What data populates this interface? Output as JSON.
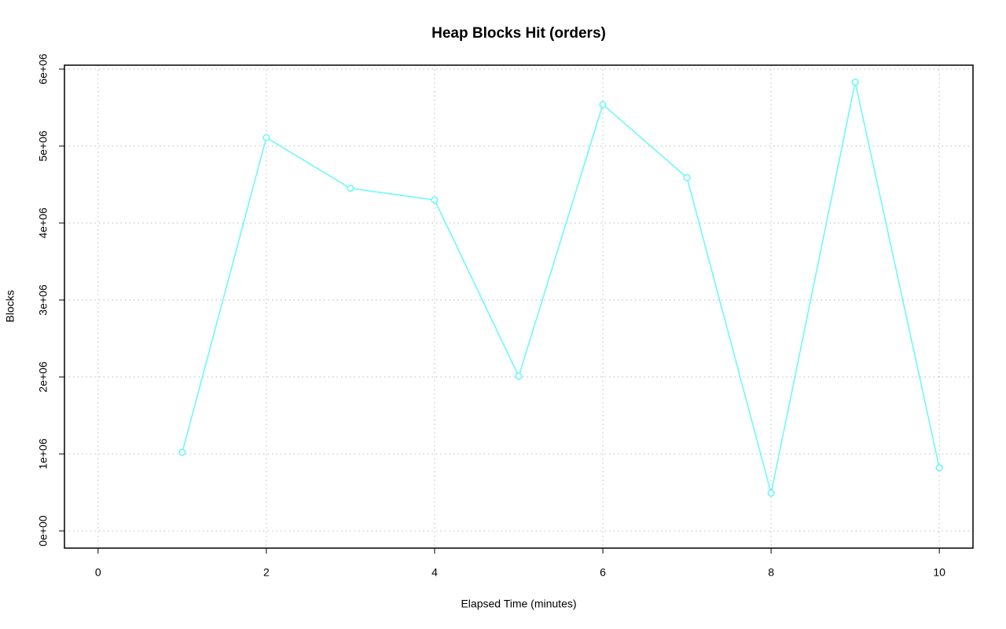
{
  "chart_data": {
    "type": "line",
    "title": "Heap Blocks Hit (orders)",
    "x_label": "Elapsed Time (minutes)",
    "y_label": "Blocks",
    "x": [
      1,
      2,
      3,
      4,
      5,
      6,
      7,
      8,
      9,
      10
    ],
    "series": [
      {
        "name": "orders",
        "color": "#6ff8f8",
        "values": [
          1020000,
          5110000,
          4450000,
          4300000,
          2010000,
          5540000,
          4590000,
          490000,
          5830000,
          820000
        ]
      }
    ],
    "xlim": [
      -0.4,
      10.4
    ],
    "xticks": [
      0,
      2,
      4,
      6,
      8,
      10
    ],
    "ylim": [
      -224000,
      6051000
    ],
    "yticks": [
      {
        "value": 0,
        "label": "0e+00"
      },
      {
        "value": 1000000,
        "label": "1e+06"
      },
      {
        "value": 2000000,
        "label": "2e+06"
      },
      {
        "value": 3000000,
        "label": "3e+06"
      },
      {
        "value": 4000000,
        "label": "4e+06"
      },
      {
        "value": 5000000,
        "label": "5e+06"
      },
      {
        "value": 6000000,
        "label": "6e+06"
      }
    ],
    "grid": true
  }
}
